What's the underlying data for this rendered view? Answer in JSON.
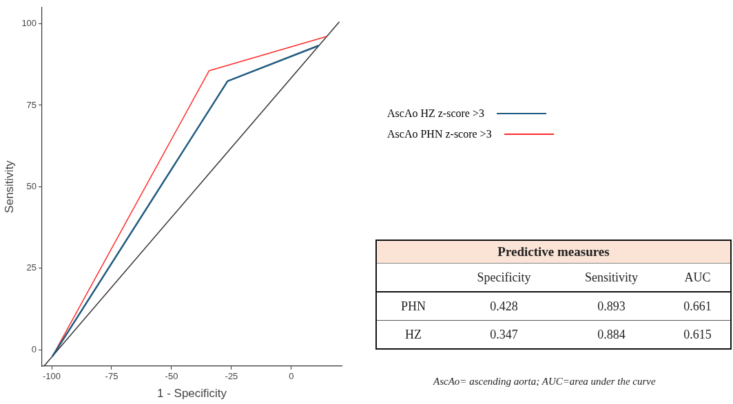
{
  "chart_data": [
    {
      "type": "line",
      "xlabel": "1 - Specificity",
      "ylabel": "Sensitivity",
      "xlim": [
        -104,
        21
      ],
      "ylim": [
        -5,
        105
      ],
      "xticks": [
        -100,
        -75,
        -50,
        -25,
        0
      ],
      "yticks": [
        0,
        25,
        50,
        75,
        100
      ],
      "grid": false,
      "legend": "right",
      "marker": "none",
      "line_style": "solid",
      "series": [
        {
          "name": "AscAo HZ z-score >3",
          "color": "#1f5a7f",
          "x": [
            -99.7,
            -26.6,
            11.4
          ],
          "values": [
            -2,
            82.4,
            93.3
          ]
        },
        {
          "name": "AscAo PHN z-score >3",
          "color": "#ff2a2a",
          "x": [
            -99.7,
            -34.3,
            14.7
          ],
          "values": [
            -2,
            85.6,
            96.1
          ]
        },
        {
          "color": "#333333",
          "x": [
            -103.1,
            20
          ],
          "values": [
            -4.9,
            100.6
          ]
        }
      ]
    },
    {
      "type": "heatmap",
      "data_labels": true,
      "title": "Predictive measures",
      "categories": [
        "Specificity",
        "Sensitivity",
        "AUC"
      ],
      "y_categories": [
        "PHN",
        "HZ"
      ],
      "cells": [
        [
          0.428,
          0.893,
          0.661
        ],
        [
          0.347,
          0.884,
          0.615
        ]
      ],
      "annotations": [
        "AscAo= ascending aorta; AUC=area under the curve"
      ]
    }
  ]
}
